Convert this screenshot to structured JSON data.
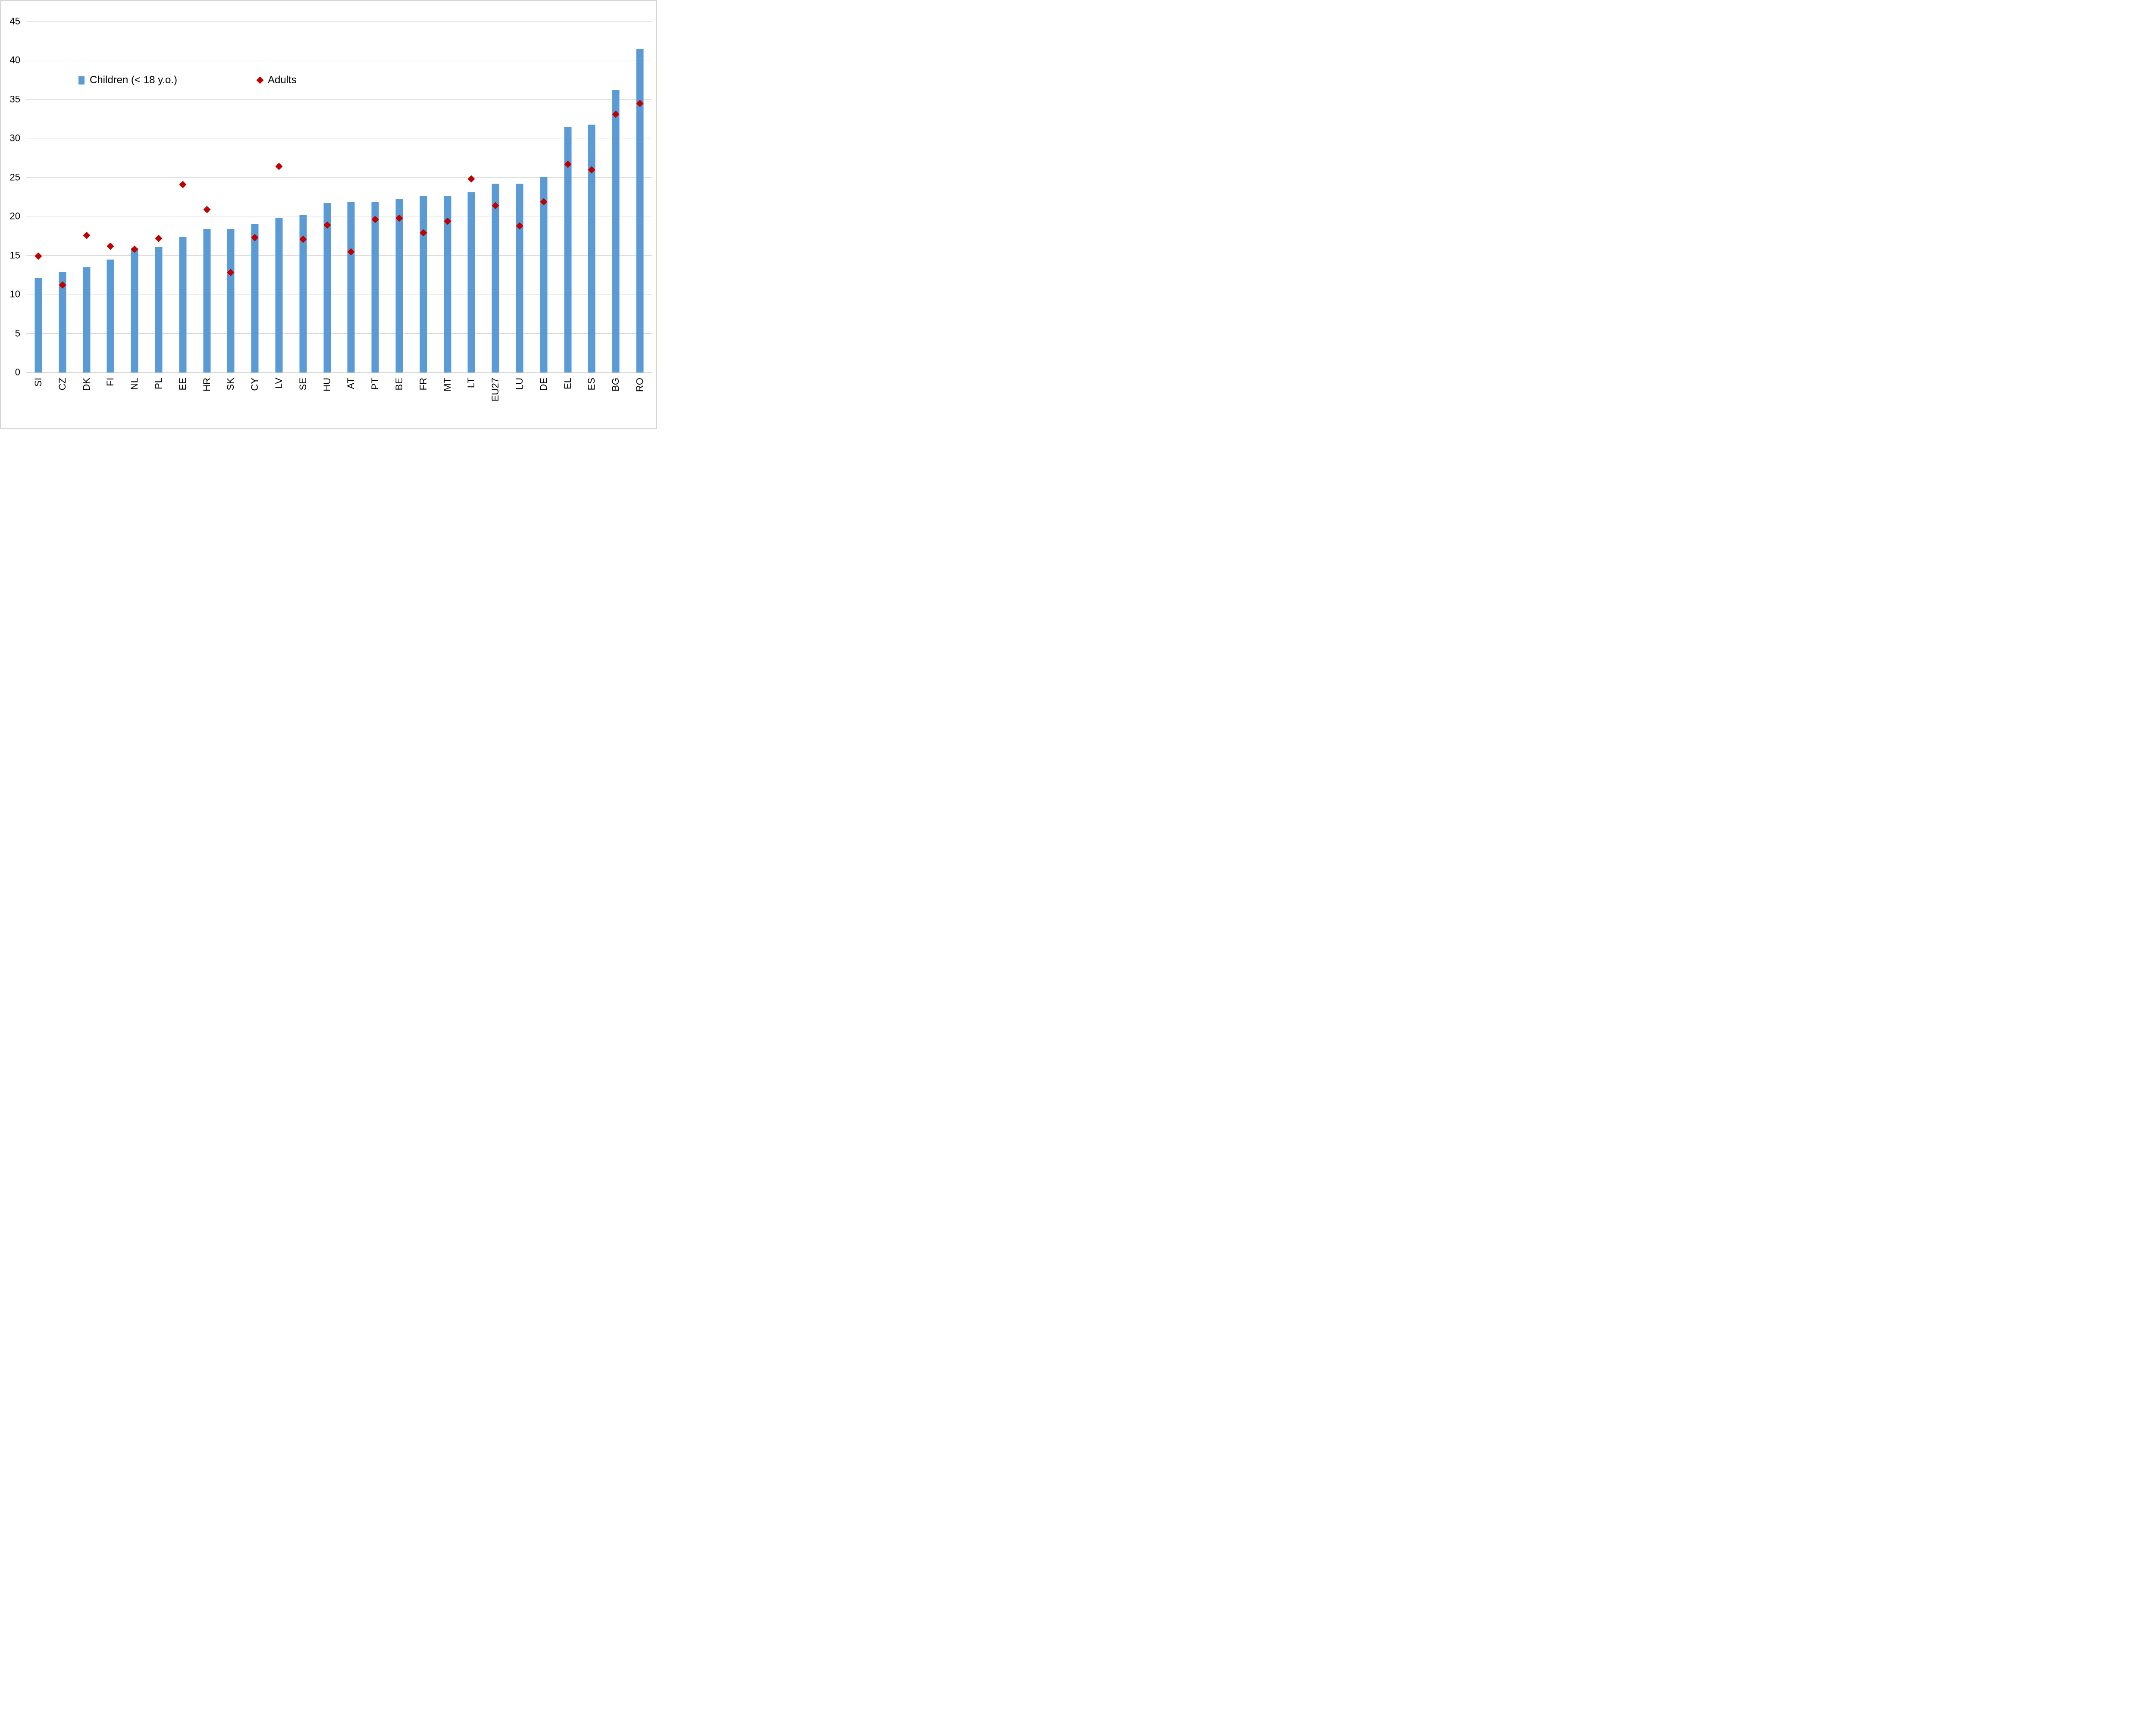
{
  "legend": {
    "children_label": "Children (< 18 y.o.)",
    "adults_label": "Adults"
  },
  "colors": {
    "bar": "#5b9bd5",
    "diamond": "#c00000",
    "gridline": "#d9d9d9",
    "text": "#000000",
    "frame": "#d6d6d6"
  },
  "chart_data": {
    "type": "bar",
    "title": "",
    "xlabel": "",
    "ylabel": "",
    "categories": [
      "SI",
      "CZ",
      "DK",
      "FI",
      "NL",
      "PL",
      "EE",
      "HR",
      "SK",
      "CY",
      "LV",
      "SE",
      "HU",
      "AT",
      "PT",
      "BE",
      "FR",
      "MT",
      "LT",
      "EU27",
      "LU",
      "DE",
      "EL",
      "ES",
      "BG",
      "RO"
    ],
    "series": [
      {
        "name": "Children (< 18 y.o.)",
        "type": "bar",
        "values": [
          12.1,
          12.9,
          13.5,
          14.5,
          15.9,
          16.1,
          17.4,
          18.4,
          18.4,
          19.0,
          19.8,
          20.2,
          21.7,
          21.9,
          21.9,
          22.2,
          22.6,
          22.6,
          23.1,
          24.2,
          24.2,
          25.1,
          31.5,
          31.8,
          36.2,
          41.5
        ]
      },
      {
        "name": "Adults",
        "type": "scatter-diamond",
        "values": [
          14.9,
          11.2,
          17.6,
          16.2,
          15.8,
          17.2,
          24.1,
          20.9,
          12.8,
          17.3,
          26.4,
          17.1,
          18.9,
          15.5,
          19.6,
          19.8,
          17.9,
          19.4,
          24.8,
          21.4,
          18.8,
          21.9,
          26.7,
          26.0,
          33.1,
          34.5
        ]
      }
    ],
    "ylim": [
      0,
      45
    ],
    "yticks": [
      0,
      5,
      10,
      15,
      20,
      25,
      30,
      35,
      40,
      45
    ],
    "grid": true,
    "legend_position": "inside-top-left",
    "x_tick_label_rotation": 90
  }
}
